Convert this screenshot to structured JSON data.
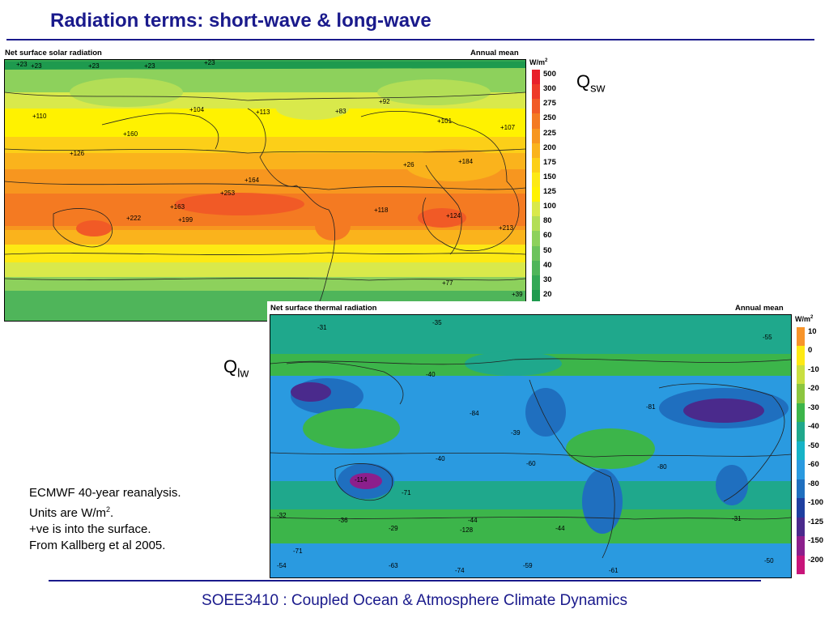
{
  "slide": {
    "title": "Radiation terms: short-wave & long-wave",
    "footer": "SOEE3410 : Coupled Ocean & Atmosphere Climate Dynamics"
  },
  "sw_panel": {
    "title": "Net surface solar radiation",
    "mean": "Annual mean",
    "unit": "W/m",
    "unit_sup": "2",
    "colorbar": [
      {
        "label": "500",
        "color": "#e8202a"
      },
      {
        "label": "300",
        "color": "#ee3a28"
      },
      {
        "label": "275",
        "color": "#f15a26"
      },
      {
        "label": "250",
        "color": "#f47a22"
      },
      {
        "label": "225",
        "color": "#f7961f"
      },
      {
        "label": "200",
        "color": "#fab31c"
      },
      {
        "label": "175",
        "color": "#fccf18"
      },
      {
        "label": "150",
        "color": "#fde914"
      },
      {
        "label": "125",
        "color": "#fff200"
      },
      {
        "label": "100",
        "color": "#d9e94b"
      },
      {
        "label": "80",
        "color": "#b3de56"
      },
      {
        "label": "60",
        "color": "#8dd15c"
      },
      {
        "label": "50",
        "color": "#6cc35c"
      },
      {
        "label": "40",
        "color": "#4fb55a"
      },
      {
        "label": "30",
        "color": "#33a855"
      },
      {
        "label": "20",
        "color": "#1e9a4e"
      }
    ],
    "map_labels": [
      "+23",
      "+23",
      "+23",
      "+23",
      "+23",
      "+110",
      "+126",
      "+104",
      "+113",
      "+160",
      "+164",
      "+253",
      "+163",
      "+199",
      "+222",
      "+26",
      "+184",
      "+118",
      "+124",
      "+213",
      "+77",
      "+39",
      "+83",
      "+101",
      "+107",
      "+92"
    ],
    "symbol": "Q",
    "symbol_sub": "sw"
  },
  "lw_panel": {
    "title": "Net surface thermal radiation",
    "mean": "Annual mean",
    "unit": "W/m",
    "unit_sup": "2",
    "colorbar": [
      {
        "label": "10",
        "color": "#f7942a"
      },
      {
        "label": "0",
        "color": "#fde914"
      },
      {
        "label": "-10",
        "color": "#c9df40"
      },
      {
        "label": "-20",
        "color": "#8cc63f"
      },
      {
        "label": "-30",
        "color": "#3cb54a"
      },
      {
        "label": "-40",
        "color": "#1fa88c"
      },
      {
        "label": "-50",
        "color": "#16b3c7"
      },
      {
        "label": "-60",
        "color": "#2a9ae0"
      },
      {
        "label": "-80",
        "color": "#1f6fbf"
      },
      {
        "label": "-100",
        "color": "#1e3fa0"
      },
      {
        "label": "-125",
        "color": "#4a2a8c"
      },
      {
        "label": "-150",
        "color": "#8c1f8c"
      },
      {
        "label": "-200",
        "color": "#c8157a"
      }
    ],
    "map_labels": [
      "-35",
      "-31",
      "-55",
      "-40",
      "-84",
      "-39",
      "-40",
      "-60",
      "-81",
      "-80",
      "-114",
      "-71",
      "-36",
      "-29",
      "-44",
      "-44",
      "-31",
      "-32",
      "-54",
      "-71",
      "-63",
      "-74",
      "-61",
      "-50",
      "-128",
      "-59"
    ],
    "symbol": "Q",
    "symbol_sub": "lw"
  },
  "notes": {
    "line1": "ECMWF 40-year reanalysis.",
    "line2_pre": "Units are W/m",
    "line2_sup": "2",
    "line2_post": ".",
    "line3": "+ve is into the surface.",
    "line4": "From Kallberg et al 2005."
  }
}
